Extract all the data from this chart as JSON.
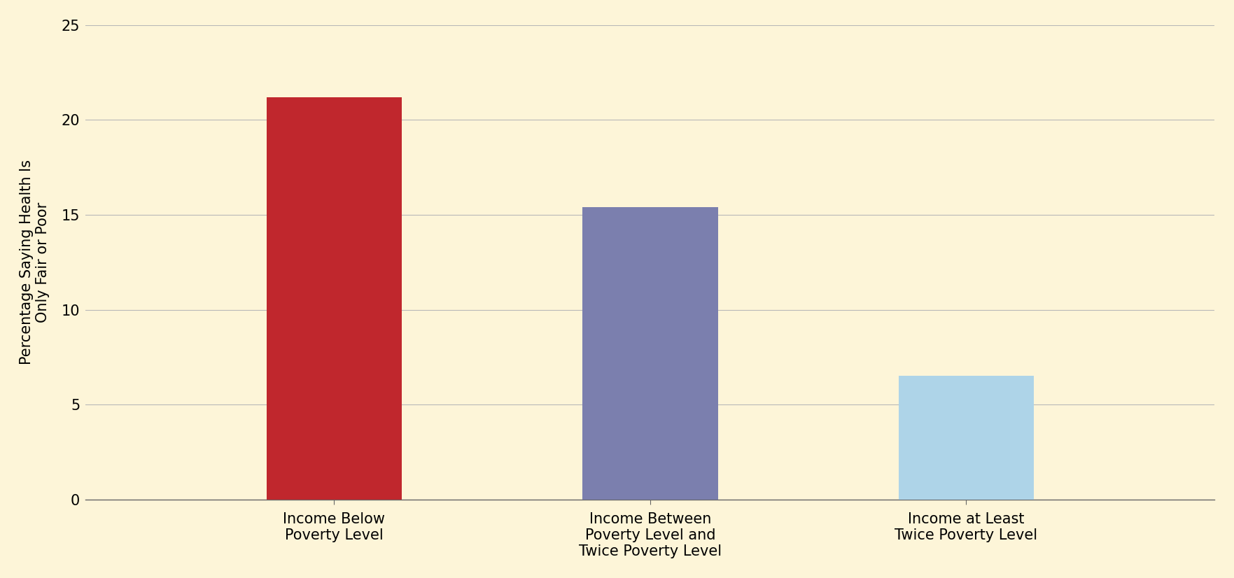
{
  "categories": [
    "Income Below\nPoverty Level",
    "Income Between\nPoverty Level and\nTwice Poverty Level",
    "Income at Least\nTwice Poverty Level"
  ],
  "values": [
    21.2,
    15.4,
    6.5
  ],
  "bar_colors": [
    "#c0272d",
    "#7b7fae",
    "#aed4e8"
  ],
  "ylabel": "Percentage Saying Health Is\nOnly Fair or Poor",
  "ylim": [
    0,
    25
  ],
  "yticks": [
    0,
    5,
    10,
    15,
    20,
    25
  ],
  "background_color": "#fdf5d8",
  "grid_color": "#b8b8b8",
  "bar_width": 0.12,
  "x_positions": [
    0.22,
    0.5,
    0.78
  ],
  "xlim": [
    0.0,
    1.0
  ],
  "tick_label_fontsize": 15,
  "ylabel_fontsize": 15,
  "outer_border_color": "#888888"
}
